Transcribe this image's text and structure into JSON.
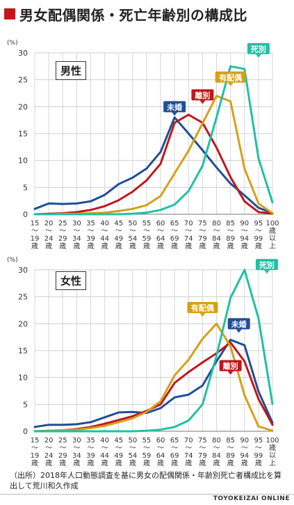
{
  "title": "男女配偶関係・死亡年齢別の構成比",
  "note": "（出所）2018年人口動態調査を基に男女の配偶関係・年齢別死亡者構成比を算出して荒川和久作成",
  "brand": "TOYOKEIZAI ONLINE",
  "colors": {
    "title_marker": "#c4161c",
    "未婚": "#1f4e96",
    "離別": "#c0161c",
    "有配偶": "#d4a017",
    "死別": "#20c0a4"
  },
  "chart_data": [
    {
      "type": "line",
      "panel": "男性",
      "ylabel": "(%)",
      "ylim": [
        0,
        30
      ],
      "yticks": [
        0,
        5,
        10,
        15,
        20,
        25,
        30
      ],
      "grid": true,
      "categories": [
        [
          "15",
          "～",
          "19",
          "歳"
        ],
        [
          "20",
          "～",
          "24",
          "歳"
        ],
        [
          "25",
          "～",
          "29",
          "歳"
        ],
        [
          "30",
          "～",
          "34",
          "歳"
        ],
        [
          "35",
          "～",
          "39",
          "歳"
        ],
        [
          "40",
          "～",
          "44",
          "歳"
        ],
        [
          "45",
          "～",
          "49",
          "歳"
        ],
        [
          "50",
          "～",
          "54",
          "歳"
        ],
        [
          "55",
          "～",
          "59",
          "歳"
        ],
        [
          "60",
          "～",
          "64",
          "歳"
        ],
        [
          "65",
          "～",
          "69",
          "歳"
        ],
        [
          "70",
          "～",
          "74",
          "歳"
        ],
        [
          "75",
          "～",
          "79",
          "歳"
        ],
        [
          "80",
          "～",
          "84",
          "歳"
        ],
        [
          "85",
          "～",
          "89",
          "歳"
        ],
        [
          "90",
          "～",
          "94",
          "歳"
        ],
        [
          "95",
          "～",
          "99",
          "歳"
        ],
        [
          "100",
          "歳",
          "以",
          "上"
        ]
      ],
      "series": [
        {
          "name": "未婚",
          "values": [
            1.0,
            2.0,
            1.9,
            2.0,
            2.4,
            3.6,
            5.6,
            6.8,
            8.5,
            11.6,
            18.0,
            15.0,
            11.9,
            8.7,
            5.7,
            3.5,
            1.2,
            0.2
          ]
        },
        {
          "name": "離別",
          "values": [
            0.0,
            0.1,
            0.2,
            0.4,
            0.8,
            1.5,
            2.6,
            4.2,
            6.3,
            9.4,
            17.0,
            18.5,
            17.0,
            12.4,
            6.9,
            2.4,
            0.4,
            0.1
          ]
        },
        {
          "name": "有配偶",
          "values": [
            0.0,
            0.0,
            0.1,
            0.1,
            0.2,
            0.3,
            0.6,
            1.0,
            1.7,
            3.4,
            7.6,
            11.8,
            16.9,
            22.0,
            21.0,
            8.5,
            2.0,
            0.2
          ]
        },
        {
          "name": "死別",
          "values": [
            0.0,
            0.0,
            0.0,
            0.0,
            0.0,
            0.0,
            0.0,
            0.1,
            0.3,
            0.8,
            1.8,
            4.3,
            9.0,
            18.0,
            27.5,
            27.0,
            10.4,
            2.2
          ]
        }
      ],
      "series_labels": [
        {
          "name": "未婚",
          "at": 10,
          "value": 20.0
        },
        {
          "name": "離別",
          "at": 12,
          "value": 22.2
        },
        {
          "name": "有配偶",
          "at": 14,
          "value": 25.5
        },
        {
          "name": "死別",
          "at": 16,
          "value": 30.8
        }
      ]
    },
    {
      "type": "line",
      "panel": "女性",
      "ylabel": "(%)",
      "ylim": [
        0,
        30
      ],
      "yticks": [
        0,
        5,
        10,
        15,
        20,
        25,
        30
      ],
      "grid": true,
      "categories": [
        [
          "15",
          "～",
          "19",
          "歳"
        ],
        [
          "20",
          "～",
          "24",
          "歳"
        ],
        [
          "25",
          "～",
          "29",
          "歳"
        ],
        [
          "30",
          "～",
          "34",
          "歳"
        ],
        [
          "35",
          "～",
          "39",
          "歳"
        ],
        [
          "40",
          "～",
          "44",
          "歳"
        ],
        [
          "45",
          "～",
          "49",
          "歳"
        ],
        [
          "50",
          "～",
          "54",
          "歳"
        ],
        [
          "55",
          "～",
          "59",
          "歳"
        ],
        [
          "60",
          "～",
          "64",
          "歳"
        ],
        [
          "65",
          "～",
          "69",
          "歳"
        ],
        [
          "70",
          "～",
          "74",
          "歳"
        ],
        [
          "75",
          "～",
          "79",
          "歳"
        ],
        [
          "80",
          "～",
          "84",
          "歳"
        ],
        [
          "85",
          "～",
          "89",
          "歳"
        ],
        [
          "90",
          "～",
          "94",
          "歳"
        ],
        [
          "95",
          "～",
          "99",
          "歳"
        ],
        [
          "100",
          "歳",
          "以",
          "上"
        ]
      ],
      "series": [
        {
          "name": "未婚",
          "values": [
            0.8,
            1.2,
            1.2,
            1.3,
            1.7,
            2.6,
            3.5,
            3.6,
            3.4,
            4.3,
            6.3,
            6.8,
            8.5,
            13.0,
            17.0,
            16.0,
            7.4,
            1.6
          ]
        },
        {
          "name": "離別",
          "values": [
            0.0,
            0.1,
            0.2,
            0.4,
            0.8,
            1.4,
            2.1,
            2.8,
            3.8,
            5.0,
            9.0,
            11.0,
            12.8,
            14.5,
            16.5,
            13.0,
            6.0,
            1.2
          ]
        },
        {
          "name": "有配偶",
          "values": [
            0.0,
            0.1,
            0.2,
            0.3,
            0.6,
            1.0,
            1.7,
            2.4,
            3.6,
            5.6,
            10.4,
            13.3,
            17.2,
            20.0,
            15.8,
            6.7,
            0.9,
            0.1
          ]
        },
        {
          "name": "死別",
          "values": [
            0.0,
            0.0,
            0.0,
            0.0,
            0.0,
            0.0,
            0.0,
            0.0,
            0.1,
            0.3,
            0.8,
            2.0,
            5.0,
            14.0,
            24.8,
            30.0,
            21.0,
            5.1
          ]
        }
      ],
      "series_labels": [
        {
          "name": "有配偶",
          "at": 12,
          "value": 23.0
        },
        {
          "name": "未婚",
          "at": 14.6,
          "value": 20.0
        },
        {
          "name": "離別",
          "at": 14,
          "value": 12.2
        },
        {
          "name": "死別",
          "at": 16.6,
          "value": 31.0
        }
      ]
    }
  ]
}
